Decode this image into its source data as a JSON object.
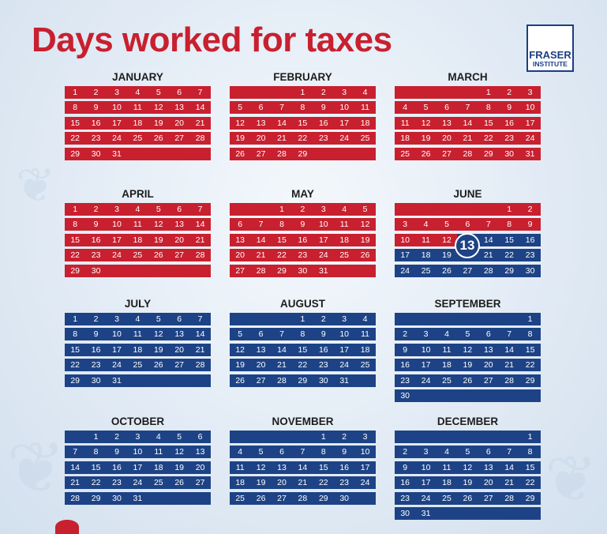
{
  "title": "Days worked for taxes",
  "logo": {
    "line1": "FRASER",
    "line2": "INSTITUTE"
  },
  "colors": {
    "worked_for_taxes": "#c8202f",
    "worked_for_self": "#1d4386",
    "title": "#c8202f"
  },
  "tax_freedom_day": {
    "month": "June",
    "day": "13"
  },
  "months": [
    {
      "name": "JANUARY",
      "start_col": 0,
      "days": 31,
      "red_through": 31
    },
    {
      "name": "FEBRUARY",
      "start_col": 3,
      "days": 29,
      "red_through": 29
    },
    {
      "name": "MARCH",
      "start_col": 4,
      "days": 31,
      "red_through": 31
    },
    {
      "name": "APRIL",
      "start_col": 0,
      "days": 30,
      "red_through": 30
    },
    {
      "name": "MAY",
      "start_col": 2,
      "days": 31,
      "red_through": 31
    },
    {
      "name": "JUNE",
      "start_col": 5,
      "days": 30,
      "red_through": 12
    },
    {
      "name": "JULY",
      "start_col": 0,
      "days": 31,
      "red_through": 0
    },
    {
      "name": "AUGUST",
      "start_col": 3,
      "days": 31,
      "red_through": 0
    },
    {
      "name": "SEPTEMBER",
      "start_col": 6,
      "days": 30,
      "red_through": 0
    },
    {
      "name": "OCTOBER",
      "start_col": 1,
      "days": 31,
      "red_through": 0
    },
    {
      "name": "NOVEMBER",
      "start_col": 4,
      "days": 30,
      "red_through": 0
    },
    {
      "name": "DECEMBER",
      "start_col": 6,
      "days": 31,
      "red_through": 0
    }
  ]
}
